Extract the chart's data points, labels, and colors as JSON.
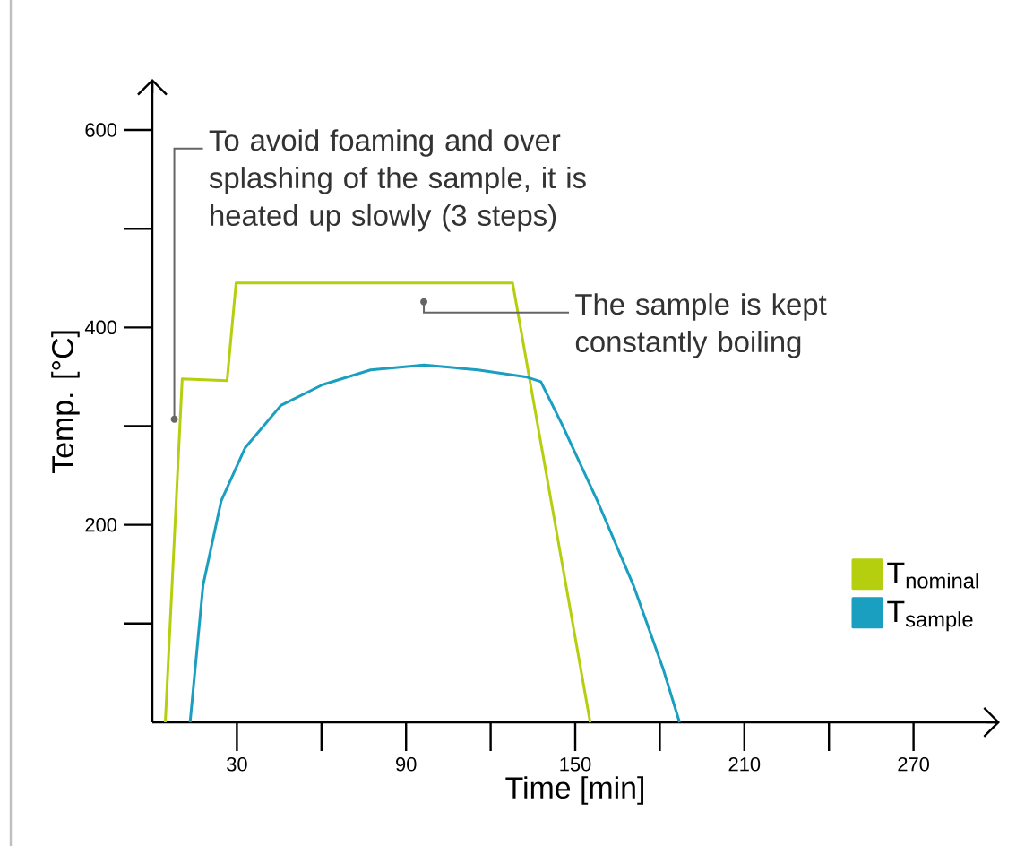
{
  "chart_data": {
    "type": "line",
    "xlabel": "Time [min]",
    "ylabel": "Temp. [°C]",
    "xlim": [
      0,
      300
    ],
    "ylim": [
      0,
      650
    ],
    "xticks": [
      30,
      {
        "value": 60,
        "label": null
      },
      90,
      {
        "value": 120,
        "label": null
      },
      150,
      {
        "value": 180,
        "label": null
      },
      210,
      {
        "value": 240,
        "label": null
      },
      270
    ],
    "yticks": [
      {
        "value": 100,
        "label": null
      },
      200,
      {
        "value": 300,
        "label": null
      },
      400,
      {
        "value": 500,
        "label": null
      },
      600
    ],
    "legend": "bottom right",
    "grid": false,
    "marker": "none",
    "line_style": "solid",
    "series": [
      {
        "name": "T$_{nominal}$",
        "color": "#b5cf0f",
        "x": [
          4.6,
          10.6,
          26.5,
          29.7,
          127.8,
          155.3
        ],
        "values": [
          0,
          348,
          346,
          445,
          445,
          0
        ]
      },
      {
        "name": "T$_{sample}$",
        "color": "#1a9fc0",
        "x": [
          13.4,
          18,
          24.4,
          32.9,
          45.6,
          60.4,
          77.4,
          96.4,
          115.5,
          132.4,
          137.8,
          145.1,
          157.9,
          170.6,
          181.2,
          187
        ],
        "values": [
          0,
          139,
          224,
          278,
          321,
          342,
          357,
          362,
          357,
          350,
          345,
          303,
          224,
          139,
          54,
          0
        ]
      }
    ],
    "annotations": [
      {
        "text": "To avoid foaming and over splashing of the sample, it is heated up slowly (3 steps)",
        "x": 7.8,
        "y": 307
      },
      {
        "text": "The sample is kept constantly boiling",
        "x": 96.3,
        "y": 426
      }
    ]
  }
}
